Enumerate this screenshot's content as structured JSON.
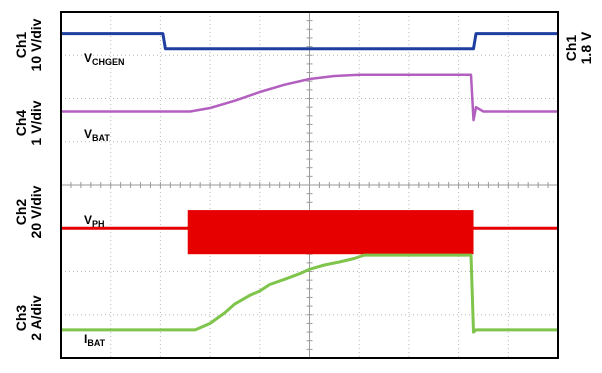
{
  "chart_data": {
    "type": "line",
    "xlim": [
      0,
      10
    ],
    "ylim": [
      0,
      8
    ],
    "grid": true,
    "axis_labels_left": [
      {
        "channel": "Ch1",
        "scale": "10 V/div"
      },
      {
        "channel": "Ch4",
        "scale": "1 V/div"
      },
      {
        "channel": "Ch2",
        "scale": "20 V/div"
      },
      {
        "channel": "Ch3",
        "scale": "2 A/div"
      }
    ],
    "axis_labels_right": [
      {
        "channel": "Ch1",
        "scale": "1.8 V"
      }
    ],
    "series": [
      {
        "key": "vchgen",
        "label": "V",
        "label_sub": "CHGEN",
        "color": "#1f3fa0",
        "width": 3,
        "x": [
          0,
          2.05,
          2.1,
          8.3,
          8.35,
          10
        ],
        "y": [
          7.5,
          7.5,
          7.15,
          7.15,
          7.5,
          7.5
        ]
      },
      {
        "key": "vbat",
        "label": "V",
        "label_sub": "BAT",
        "color": "#b35fc0",
        "width": 2.5,
        "x": [
          0,
          2.6,
          3.0,
          3.5,
          4.0,
          4.5,
          5.0,
          5.5,
          6.0,
          6.5,
          7.0,
          7.5,
          8.0,
          8.25,
          8.3,
          8.35,
          8.5,
          10
        ],
        "y": [
          5.7,
          5.7,
          5.78,
          5.95,
          6.15,
          6.32,
          6.45,
          6.52,
          6.55,
          6.55,
          6.55,
          6.55,
          6.55,
          6.55,
          5.5,
          5.8,
          5.7,
          5.7
        ]
      },
      {
        "key": "vph",
        "label": "V",
        "label_sub": "PH",
        "color": "#e60000",
        "width": 3,
        "x": [
          0,
          2.55,
          8.3,
          10
        ],
        "y": [
          3.0,
          3.0,
          3.0,
          3.0
        ],
        "band": {
          "x_start": 2.55,
          "x_end": 8.3,
          "y_low": 2.4,
          "y_high": 3.42
        }
      },
      {
        "key": "ibat",
        "label": "I",
        "label_sub": "BAT",
        "color": "#7fc44b",
        "width": 3,
        "x": [
          0,
          2.7,
          3.0,
          3.3,
          3.5,
          3.8,
          4.0,
          4.2,
          4.5,
          4.8,
          5.0,
          5.3,
          5.6,
          5.9,
          6.1,
          6.5,
          7.0,
          7.5,
          8.0,
          8.25,
          8.3,
          8.35,
          10
        ],
        "y": [
          0.65,
          0.65,
          0.8,
          1.05,
          1.25,
          1.45,
          1.55,
          1.7,
          1.82,
          1.95,
          2.05,
          2.15,
          2.22,
          2.3,
          2.38,
          2.38,
          2.38,
          2.38,
          2.38,
          2.38,
          0.6,
          0.65,
          0.65
        ]
      }
    ]
  }
}
